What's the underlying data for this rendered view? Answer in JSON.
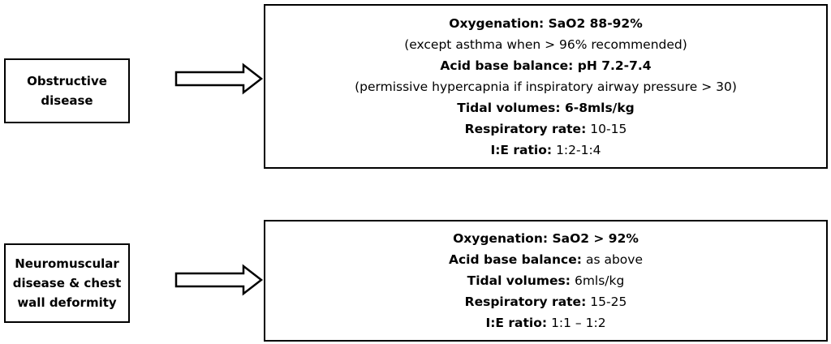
{
  "rows": [
    {
      "label": [
        "Obstructive",
        "disease"
      ],
      "lines": [
        [
          {
            "text": "Oxygenation: SaO2 88-92%",
            "bold": true
          }
        ],
        [
          {
            "text": "(except asthma when > 96% recommended)",
            "bold": false
          }
        ],
        [
          {
            "text": "Acid base balance: pH 7.2-7.4",
            "bold": true
          }
        ],
        [
          {
            "text": "(permissive hypercapnia if inspiratory airway pressure > 30)",
            "bold": false
          }
        ],
        [
          {
            "text": "Tidal volumes: 6-8mls/kg",
            "bold": true
          }
        ],
        [
          {
            "text": "Respiratory rate:",
            "bold": true
          },
          {
            "text": "10-15",
            "bold": false
          }
        ],
        [
          {
            "text": "I:E ratio:",
            "bold": true
          },
          {
            "text": "1:2-1:4",
            "bold": false
          }
        ]
      ]
    },
    {
      "label": [
        "Neuromuscular",
        "disease & chest",
        "wall deformity"
      ],
      "lines": [
        [
          {
            "text": "Oxygenation: SaO2 > 92%",
            "bold": true
          }
        ],
        [
          {
            "text": "Acid base balance:",
            "bold": true
          },
          {
            "text": "as above",
            "bold": false
          }
        ],
        [
          {
            "text": "Tidal volumes:",
            "bold": true
          },
          {
            "text": "6mls/kg",
            "bold": false
          }
        ],
        [
          {
            "text": "Respiratory rate:",
            "bold": true
          },
          {
            "text": "15-25",
            "bold": false
          }
        ],
        [
          {
            "text": "I:E ratio:",
            "bold": true
          },
          {
            "text": "1:1 – 1:2",
            "bold": false
          }
        ]
      ]
    }
  ]
}
